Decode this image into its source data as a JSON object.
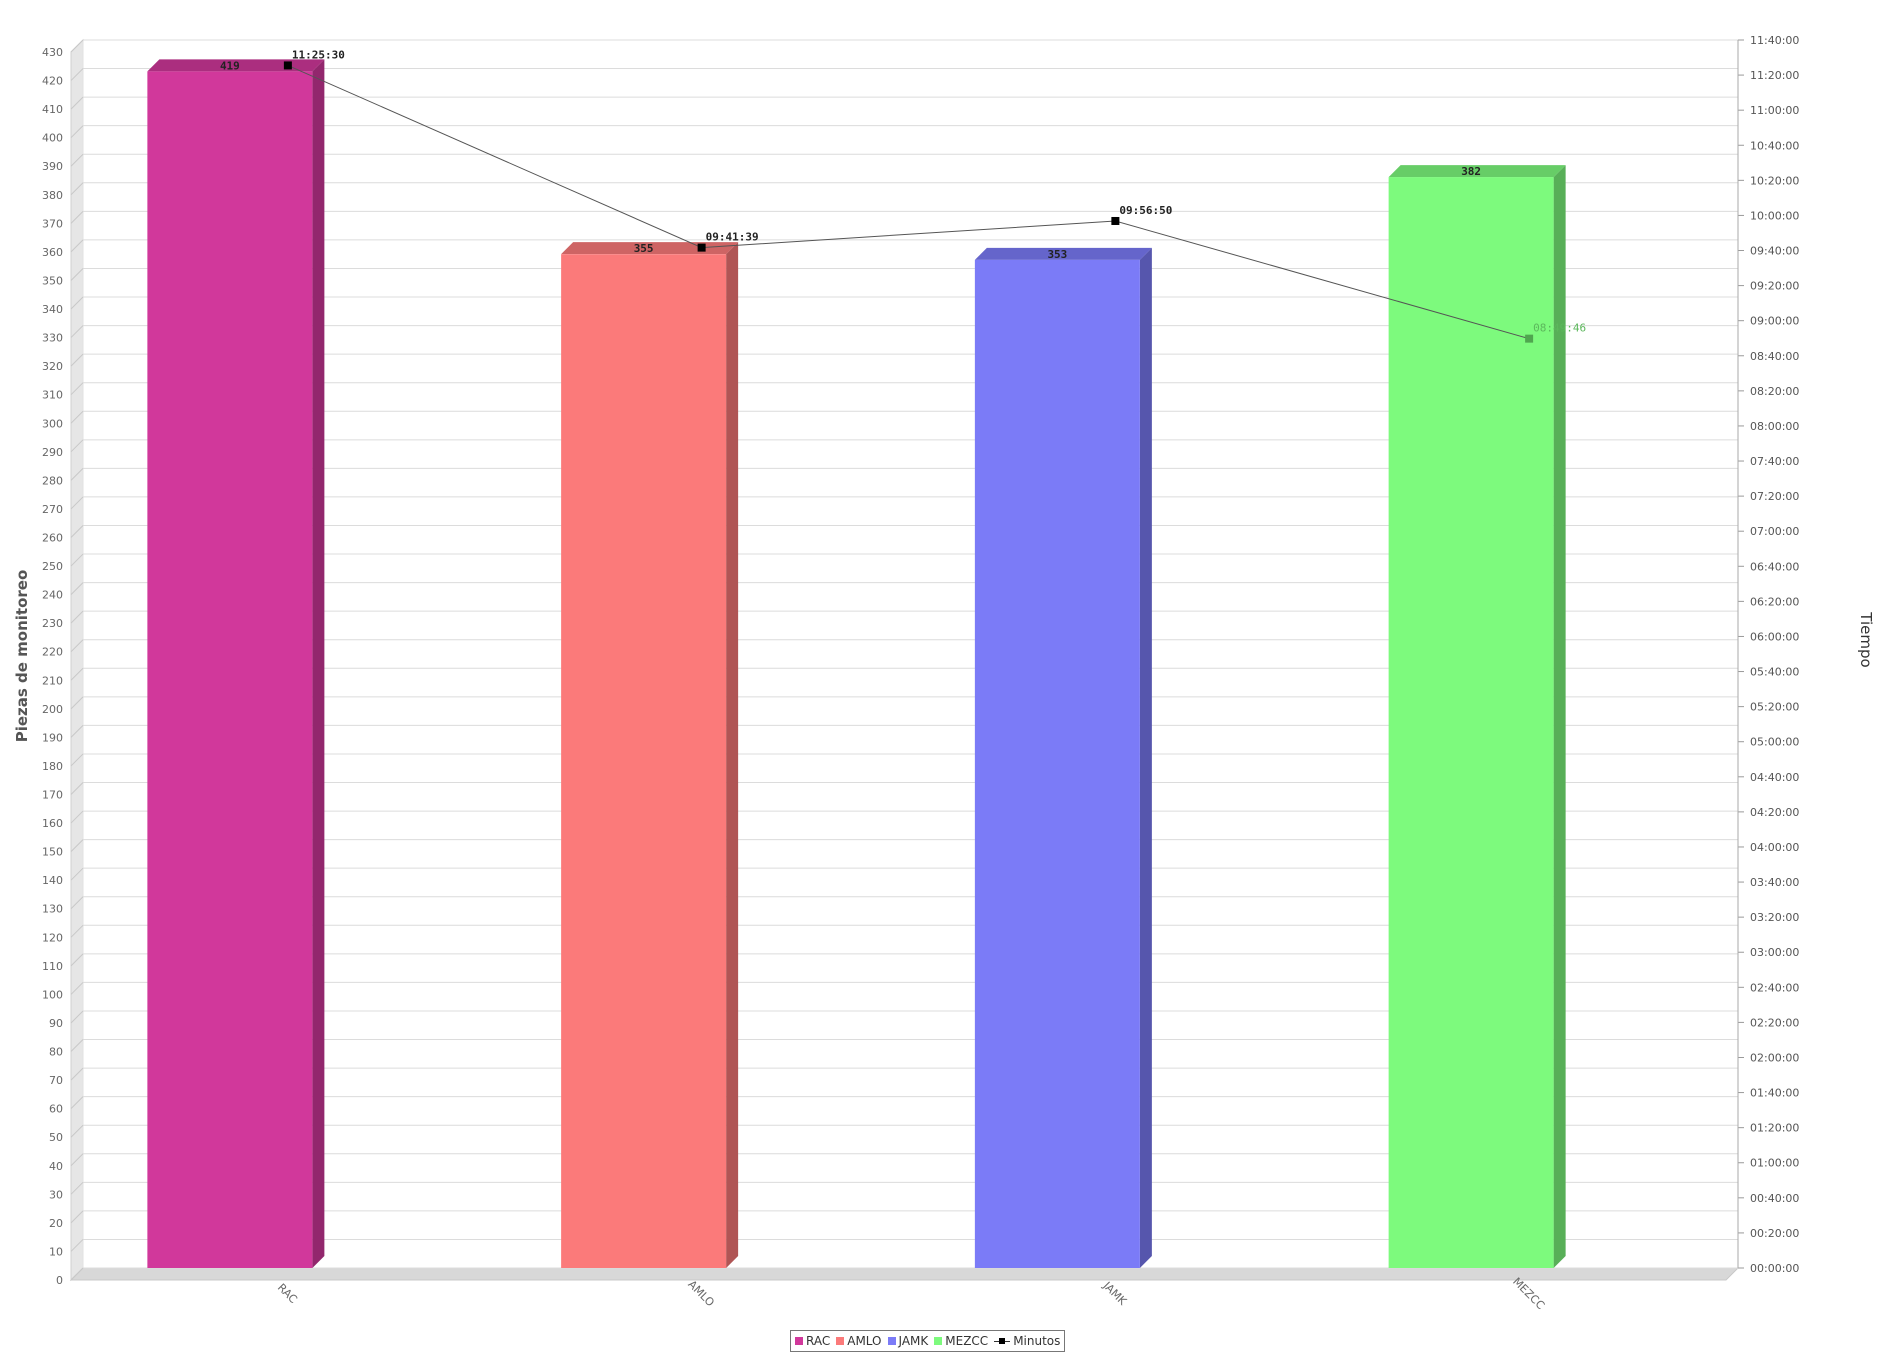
{
  "chart_data": {
    "type": "bar",
    "categories": [
      "RAC",
      "AMLO",
      "JAMK",
      "MEZCC"
    ],
    "bar_values": [
      419,
      355,
      353,
      382
    ],
    "bar_colors": [
      "#d1389b",
      "#fb7a7a",
      "#7b7bf7",
      "#7dfa7d"
    ],
    "bar_labels": [
      "419",
      "355",
      "353",
      "382"
    ],
    "line_series": {
      "name": "Minutos",
      "values_seconds": [
        41130,
        34899,
        35810,
        31786
      ],
      "labels": [
        "11:25:30",
        "09:41:39",
        "09:56:50",
        "08:49:46"
      ]
    },
    "ylabel": "Piezas de monitoreo",
    "ylabel_right": "Tiempo",
    "ylim": [
      0,
      430
    ],
    "ytick_step": 10,
    "ylim_right_seconds": [
      0,
      42000
    ],
    "ytick_right_step_seconds": 1200,
    "grid": true,
    "legend_position": "bottom-center",
    "legend": [
      "RAC",
      "AMLO",
      "JAMK",
      "MEZCC",
      "Minutos"
    ]
  }
}
